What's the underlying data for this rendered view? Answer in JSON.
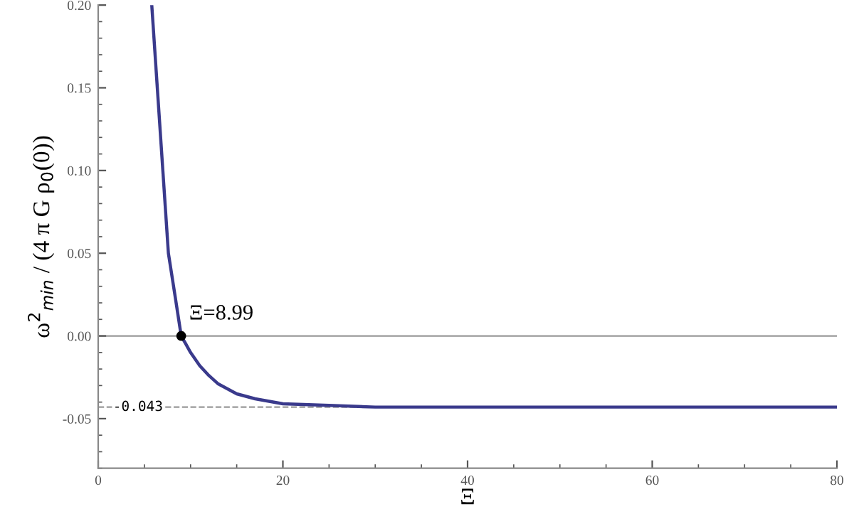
{
  "chart_data": {
    "type": "line",
    "xlabel": "Ξ",
    "ylabel": "ω$^{2}$$_{min}$ / (4 π G ρ$_{0}$(0))",
    "xlim": [
      0,
      80
    ],
    "ylim": [
      -0.08,
      0.2
    ],
    "xticks": [
      0,
      20,
      40,
      60,
      80
    ],
    "yticks": [
      {
        "value": -0.05,
        "label": "-0.05"
      },
      {
        "value": 0.0,
        "label": "0.00"
      },
      {
        "value": 0.05,
        "label": "0.05"
      },
      {
        "value": 0.1,
        "label": "0.10"
      },
      {
        "value": 0.15,
        "label": "0.15"
      },
      {
        "value": 0.2,
        "label": "0.20"
      }
    ],
    "grid": false,
    "legend": false,
    "series": [
      {
        "color": "#3a3a8c",
        "x": [
          5.8,
          6.4,
          7.0,
          7.6,
          8.3,
          8.99,
          9.5,
          10,
          11,
          12,
          13,
          15,
          17,
          20,
          25,
          30,
          40,
          50,
          60,
          70,
          80
        ],
        "values": [
          0.2,
          0.15,
          0.1,
          0.05,
          0.025,
          0.0,
          -0.005,
          -0.01,
          -0.018,
          -0.024,
          -0.029,
          -0.035,
          -0.038,
          -0.041,
          -0.042,
          -0.043,
          -0.043,
          -0.043,
          -0.043,
          -0.043,
          -0.043
        ]
      },
      {
        "type": "scatter",
        "color": "#000000",
        "x": [
          8.99
        ],
        "values": [
          0.0
        ],
        "marker": "circle"
      }
    ],
    "ref_lines": [
      {
        "axis": "y",
        "value": 0.0,
        "color": "#999999",
        "line_style": "solid"
      },
      {
        "axis": "y",
        "value": -0.043,
        "label": "-0.043",
        "color": "#999999",
        "line_style": "dashed"
      }
    ],
    "annotations": [
      {
        "text": "Ξ=8.99",
        "x": 8.99,
        "y": 0.0
      }
    ]
  }
}
